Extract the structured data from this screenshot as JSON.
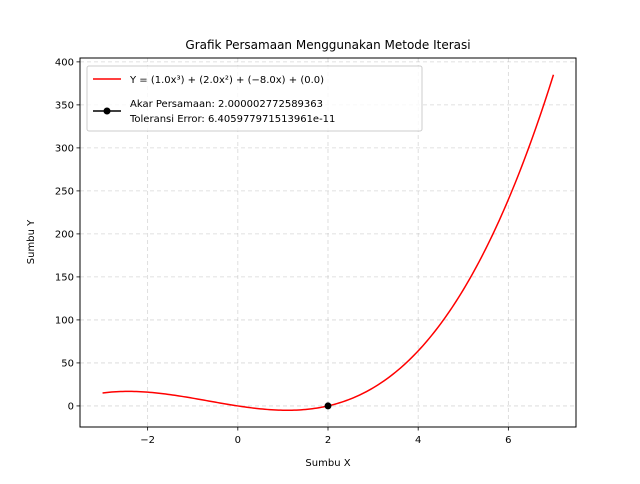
{
  "chart_data": {
    "type": "line",
    "title": "Grafik Persamaan Menggunakan Metode Iterasi",
    "xlabel": "Sumbu X",
    "ylabel": "Sumbu Y",
    "xlim": [
      -3.5,
      7.5
    ],
    "ylim": [
      -24.5,
      404.5
    ],
    "x_ticks": [
      -2,
      0,
      2,
      4,
      6
    ],
    "x_tick_labels": [
      "−2",
      "0",
      "2",
      "4",
      "6"
    ],
    "y_ticks": [
      0,
      50,
      100,
      150,
      200,
      250,
      300,
      350,
      400
    ],
    "y_tick_labels": [
      "0",
      "50",
      "100",
      "150",
      "200",
      "250",
      "300",
      "350",
      "400"
    ],
    "grid": true,
    "legend_position": "top-left",
    "series": [
      {
        "name": "Y = (1.0x³) + (2.0x²) + (−8.0x) + (0.0)",
        "kind": "curve",
        "color": "#ff0000",
        "coefficients": [
          1.0,
          2.0,
          -8.0,
          0.0
        ],
        "x_range": [
          -3,
          7
        ],
        "x": [
          -3,
          -2.5,
          -2,
          -1.5,
          -1,
          -0.5,
          0,
          0.5,
          1,
          1.5,
          2,
          2.5,
          3,
          3.5,
          4,
          4.5,
          5,
          5.5,
          6,
          6.5,
          7
        ],
        "y": [
          15,
          16.875,
          16,
          13.125,
          9,
          4.375,
          0,
          -3.375,
          -5,
          -4.125,
          0,
          8.125,
          21,
          39.375,
          64,
          95.625,
          135,
          182.875,
          240,
          307.125,
          385
        ]
      },
      {
        "name": "Akar Persamaan: 2.000002772589363",
        "name_line2": "Toleransi Error: 6.405977971513961e-11",
        "kind": "point",
        "color": "#000000",
        "x": [
          2.000002772589363
        ],
        "y": [
          0
        ]
      }
    ]
  }
}
